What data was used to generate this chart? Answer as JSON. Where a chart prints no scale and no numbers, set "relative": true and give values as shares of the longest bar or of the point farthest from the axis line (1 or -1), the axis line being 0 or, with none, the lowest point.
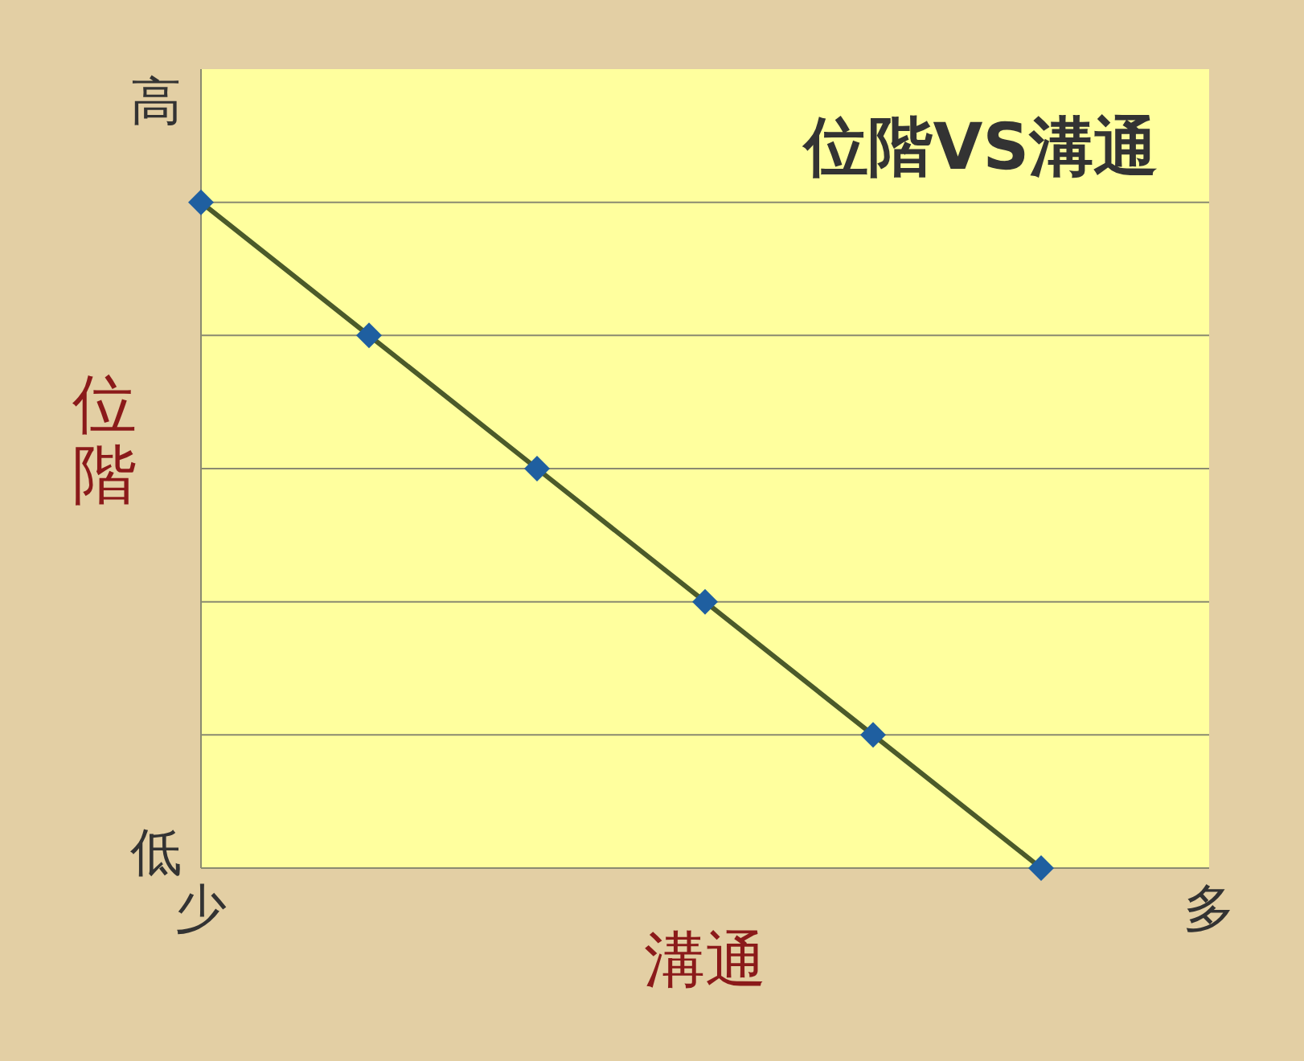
{
  "chart_data": {
    "type": "line",
    "title": "位階VS溝通",
    "xlabel": "溝通",
    "ylabel": "位階",
    "relative": true,
    "categories": [
      "少",
      null,
      null,
      null,
      null,
      null,
      "多"
    ],
    "series": [
      {
        "color": "#1f5fa0",
        "values": [
          1,
          0.8,
          0.6,
          0.4,
          0.2,
          0,
          null
        ]
      }
    ],
    "annotations": [
      "高",
      "低"
    ],
    "grid": "y",
    "marker": "diamond",
    "line_style": "solid"
  }
}
